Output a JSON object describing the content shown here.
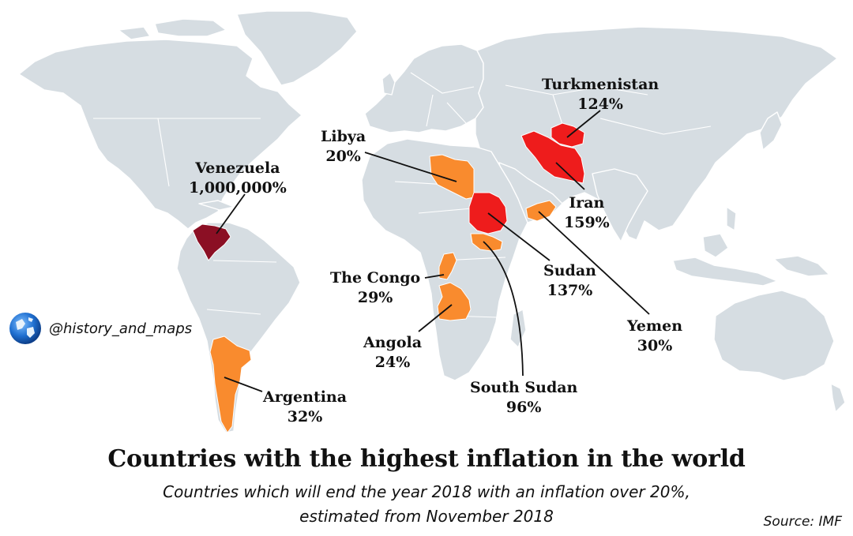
{
  "title": "Countries with the highest inflation in the world",
  "subtitle_line1": "Countries which will end the year 2018 with an inflation over 20%,",
  "subtitle_line2": "estimated from November 2018",
  "source": "Source: IMF",
  "watermark": {
    "handle": "@history_and_maps",
    "icon": "globe-icon"
  },
  "colors": {
    "ocean": "#ffffff",
    "land": "#d6dde2",
    "hyperinflation": "#8b0f24",
    "over_100": "#ee1c1c",
    "20_to_100": "#f98b2e"
  },
  "countries": [
    {
      "name": "Venezuela",
      "value": "1,000,000%"
    },
    {
      "name": "Libya",
      "value": "20%"
    },
    {
      "name": "Turkmenistan",
      "value": "124%"
    },
    {
      "name": "Iran",
      "value": "159%"
    },
    {
      "name": "Sudan",
      "value": "137%"
    },
    {
      "name": "Yemen",
      "value": "30%"
    },
    {
      "name": "The Congo",
      "value": "29%"
    },
    {
      "name": "Angola",
      "value": "24%"
    },
    {
      "name": "South Sudan",
      "value": "96%"
    },
    {
      "name": "Argentina",
      "value": "32%"
    }
  ]
}
